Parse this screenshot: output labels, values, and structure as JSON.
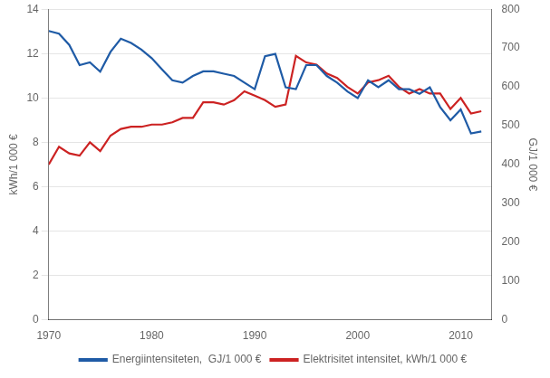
{
  "chart_data": {
    "type": "line",
    "x": [
      1970,
      1971,
      1972,
      1973,
      1974,
      1975,
      1976,
      1977,
      1978,
      1979,
      1980,
      1981,
      1982,
      1983,
      1984,
      1985,
      1986,
      1987,
      1988,
      1989,
      1990,
      1991,
      1992,
      1993,
      1994,
      1995,
      1996,
      1997,
      1998,
      1999,
      2000,
      2001,
      2002,
      2003,
      2004,
      2005,
      2006,
      2007,
      2008,
      2009,
      2010,
      2011,
      2012
    ],
    "series": [
      {
        "name": "Energiintensiteten,  GJ/1 000 €",
        "color": "#1F5BA6",
        "axis": "y2",
        "values": [
          744,
          737,
          708,
          656,
          663,
          639,
          690,
          724,
          713,
          696,
          674,
          645,
          617,
          611,
          628,
          640,
          640,
          634,
          628,
          611,
          594,
          679,
          685,
          599,
          594,
          656,
          656,
          628,
          611,
          588,
          571,
          617,
          599,
          617,
          594,
          594,
          582,
          599,
          548,
          514,
          542,
          480,
          485
        ]
      },
      {
        "name": "Elektrisitet intensitet, kWh/1 000 €",
        "color": "#CC2222",
        "axis": "y",
        "values": [
          7.0,
          7.8,
          7.5,
          7.4,
          8.0,
          7.6,
          8.3,
          8.6,
          8.7,
          8.7,
          8.8,
          8.8,
          8.9,
          9.1,
          9.1,
          9.8,
          9.8,
          9.7,
          9.9,
          10.3,
          10.1,
          9.9,
          9.6,
          9.7,
          11.9,
          11.6,
          11.5,
          11.1,
          10.9,
          10.5,
          10.2,
          10.7,
          10.8,
          11.0,
          10.5,
          10.2,
          10.4,
          10.2,
          10.2,
          9.5,
          10.0,
          9.3,
          9.4
        ]
      }
    ],
    "ylabel": "kWh/1 000 €",
    "y2label": "GJ/1 000 €",
    "xlim": [
      1970,
      2013
    ],
    "xticks": [
      1970,
      1980,
      1990,
      2000,
      2010
    ],
    "ylim": [
      0,
      14
    ],
    "yticks": [
      0,
      2,
      4,
      6,
      8,
      10,
      12,
      14
    ],
    "y2lim": [
      0,
      800
    ],
    "y2ticks": [
      0,
      100,
      200,
      300,
      400,
      500,
      600,
      700,
      800
    ],
    "grid": true,
    "legend": "bottom"
  }
}
